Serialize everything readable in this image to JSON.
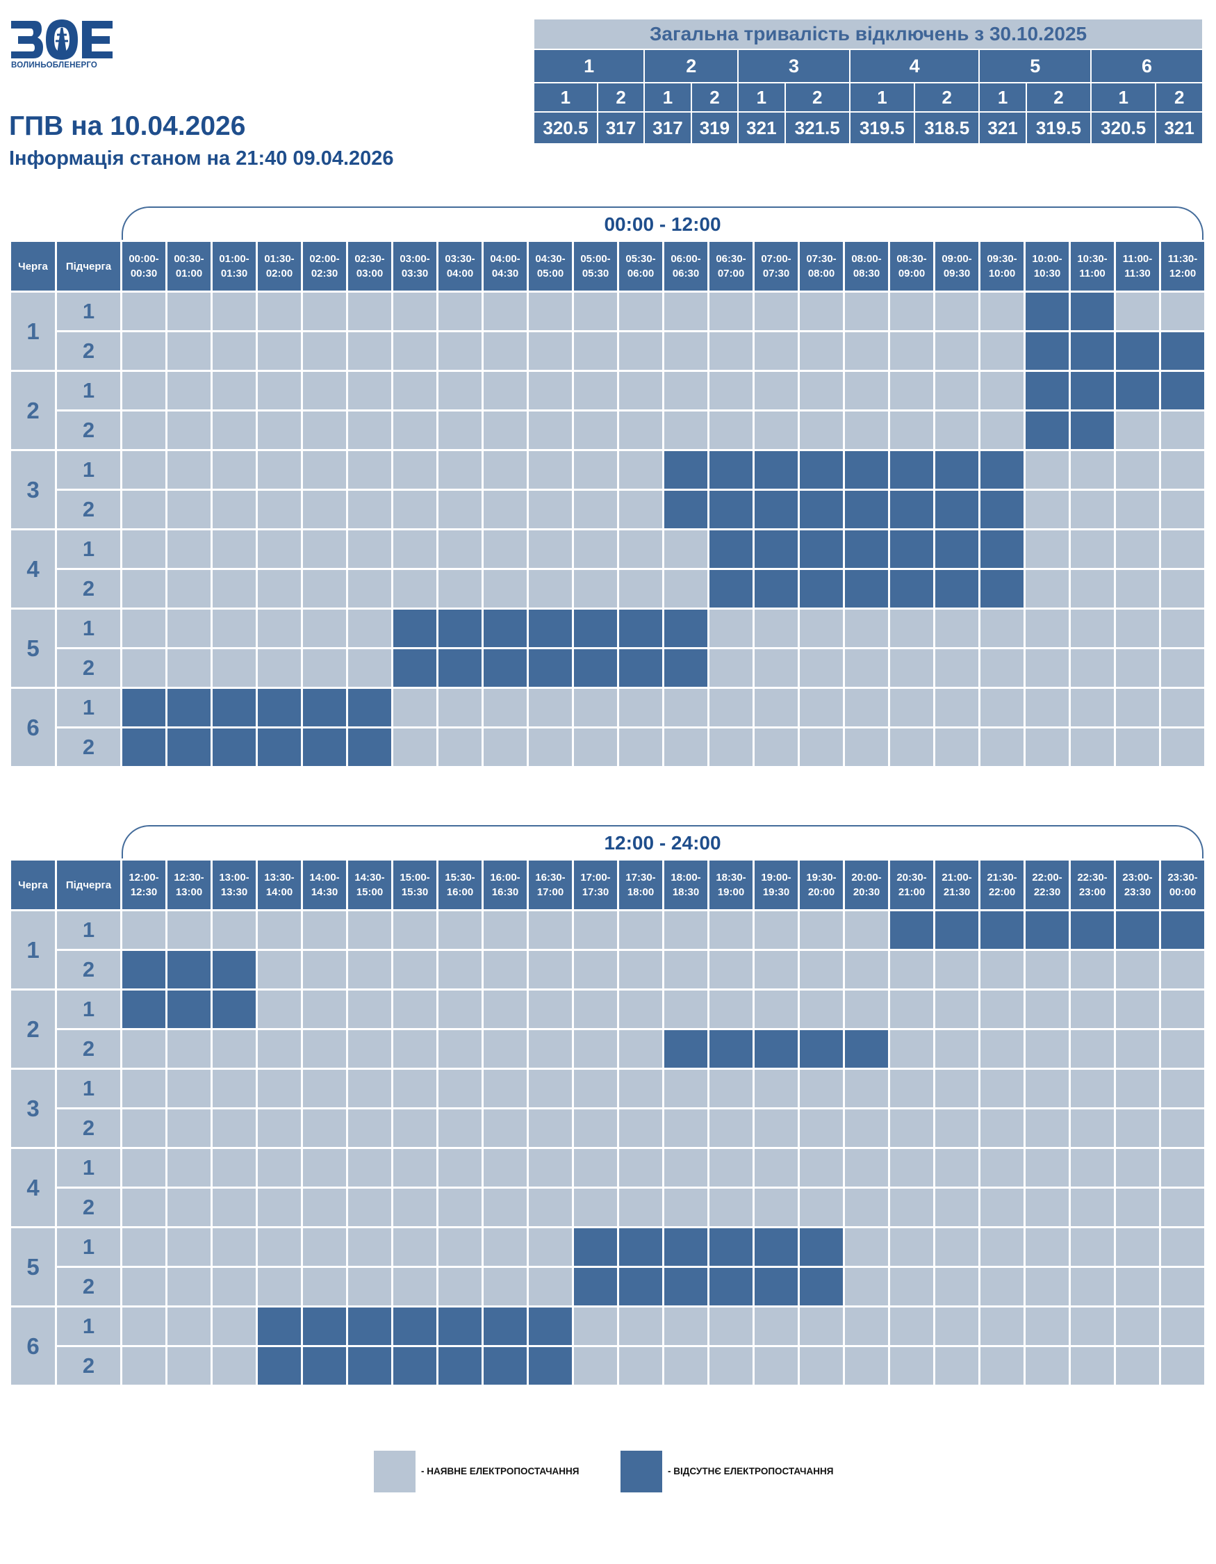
{
  "logo": {
    "text": "ВОЛИНЬОБЛЕНЕРГО",
    "mark": "ВОЕ"
  },
  "title": "ГПВ на 10.04.2026",
  "subtitle": "Інформація станом на 21:40 09.04.2026",
  "summary": {
    "title": "Загальна тривалість відключень з 30.10.2025",
    "queues": [
      "1",
      "2",
      "3",
      "4",
      "5",
      "6"
    ],
    "subqueues": [
      "1",
      "2",
      "1",
      "2",
      "1",
      "2",
      "1",
      "2",
      "1",
      "2",
      "1",
      "2"
    ],
    "values": [
      "320.5",
      "317",
      "317",
      "319",
      "321",
      "321.5",
      "319.5",
      "318.5",
      "321",
      "319.5",
      "320.5",
      "321"
    ]
  },
  "headers": {
    "queue": "Черга",
    "subqueue": "Підчерга"
  },
  "blocks": [
    {
      "range": "00:00 - 12:00",
      "slots": [
        "00:00-00:30",
        "00:30-01:00",
        "01:00-01:30",
        "01:30-02:00",
        "02:00-02:30",
        "02:30-03:00",
        "03:00-03:30",
        "03:30-04:00",
        "04:00-04:30",
        "04:30-05:00",
        "05:00-05:30",
        "05:30-06:00",
        "06:00-06:30",
        "06:30-07:00",
        "07:00-07:30",
        "07:30-08:00",
        "08:00-08:30",
        "08:30-09:00",
        "09:00-09:30",
        "09:30-10:00",
        "10:00-10:30",
        "10:30-11:00",
        "11:00-11:30",
        "11:30-12:00"
      ],
      "rows": [
        {
          "queue": "1",
          "sub": "1",
          "cells": "000000000000000000001100"
        },
        {
          "queue": "1",
          "sub": "2",
          "cells": "000000000000000000001111"
        },
        {
          "queue": "2",
          "sub": "1",
          "cells": "000000000000000000001111"
        },
        {
          "queue": "2",
          "sub": "2",
          "cells": "000000000000000000001100"
        },
        {
          "queue": "3",
          "sub": "1",
          "cells": "000000000000111111110000"
        },
        {
          "queue": "3",
          "sub": "2",
          "cells": "000000000000111111110000"
        },
        {
          "queue": "4",
          "sub": "1",
          "cells": "000000000000011111110000"
        },
        {
          "queue": "4",
          "sub": "2",
          "cells": "000000000000011111110000"
        },
        {
          "queue": "5",
          "sub": "1",
          "cells": "000000111111100000000000"
        },
        {
          "queue": "5",
          "sub": "2",
          "cells": "000000111111100000000000"
        },
        {
          "queue": "6",
          "sub": "1",
          "cells": "111111000000000000000000"
        },
        {
          "queue": "6",
          "sub": "2",
          "cells": "111111000000000000000000"
        }
      ]
    },
    {
      "range": "12:00 - 24:00",
      "slots": [
        "12:00-12:30",
        "12:30-13:00",
        "13:00-13:30",
        "13:30-14:00",
        "14:00-14:30",
        "14:30-15:00",
        "15:00-15:30",
        "15:30-16:00",
        "16:00-16:30",
        "16:30-17:00",
        "17:00-17:30",
        "17:30-18:00",
        "18:00-18:30",
        "18:30-19:00",
        "19:00-19:30",
        "19:30-20:00",
        "20:00-20:30",
        "20:30-21:00",
        "21:00-21:30",
        "21:30-22:00",
        "22:00-22:30",
        "22:30-23:00",
        "23:00-23:30",
        "23:30-00:00"
      ],
      "rows": [
        {
          "queue": "1",
          "sub": "1",
          "cells": "000000000000000001111111"
        },
        {
          "queue": "1",
          "sub": "2",
          "cells": "111000000000000000000000"
        },
        {
          "queue": "2",
          "sub": "1",
          "cells": "111000000000000000000000"
        },
        {
          "queue": "2",
          "sub": "2",
          "cells": "000000000000111110000000"
        },
        {
          "queue": "3",
          "sub": "1",
          "cells": "000000000000000000000000"
        },
        {
          "queue": "3",
          "sub": "2",
          "cells": "000000000000000000000000"
        },
        {
          "queue": "4",
          "sub": "1",
          "cells": "000000000000000000000000"
        },
        {
          "queue": "4",
          "sub": "2",
          "cells": "000000000000000000000000"
        },
        {
          "queue": "5",
          "sub": "1",
          "cells": "000000000011111100000000"
        },
        {
          "queue": "5",
          "sub": "2",
          "cells": "000000000011111100000000"
        },
        {
          "queue": "6",
          "sub": "1",
          "cells": "000111111100000000000000"
        },
        {
          "queue": "6",
          "sub": "2",
          "cells": "000111111100000000000000"
        }
      ]
    }
  ],
  "legend": {
    "available": "- НАЯВНЕ ЕЛЕКТРОПОСТАЧАННЯ",
    "absent": "- ВІДСУТНЄ ЕЛЕКТРОПОСТАЧАННЯ"
  },
  "colors": {
    "available": "#b8c5d4",
    "absent": "#436b9a",
    "text": "#1f4e8c"
  }
}
